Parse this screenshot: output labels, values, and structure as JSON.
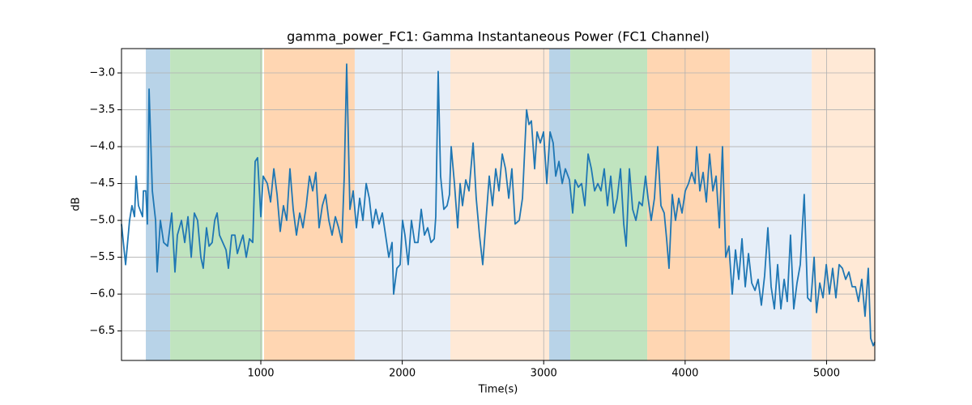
{
  "chart_data": {
    "type": "line",
    "title": "gamma_power_FC1: Gamma Instantaneous Power (FC1 Channel)",
    "xlabel": "Time(s)",
    "ylabel": "dB",
    "xlim": [
      15,
      5341
    ],
    "ylim": [
      -6.9,
      -2.67
    ],
    "xticks": [
      1000,
      2000,
      3000,
      4000,
      5000
    ],
    "yticks": [
      {
        "value": -6.5,
        "label": "−6.5"
      },
      {
        "value": -6.0,
        "label": "−6.0"
      },
      {
        "value": -5.5,
        "label": "−5.5"
      },
      {
        "value": -5.0,
        "label": "−5.0"
      },
      {
        "value": -4.5,
        "label": "−4.5"
      },
      {
        "value": -4.0,
        "label": "−4.0"
      },
      {
        "value": -3.5,
        "label": "−3.5"
      },
      {
        "value": -3.0,
        "label": "−3.0"
      }
    ],
    "grid": true,
    "spans": [
      {
        "start": 187,
        "end": 359,
        "color": "#b8d3e8"
      },
      {
        "start": 359,
        "end": 1011,
        "color": "#c0e4bf"
      },
      {
        "start": 1023,
        "end": 1664,
        "color": "#ffd6b2"
      },
      {
        "start": 1664,
        "end": 2340,
        "color": "#e6eef8"
      },
      {
        "start": 2340,
        "end": 3039,
        "color": "#ffe9d6"
      },
      {
        "start": 3039,
        "end": 3188,
        "color": "#b8d3e8"
      },
      {
        "start": 3188,
        "end": 3732,
        "color": "#c0e4bf"
      },
      {
        "start": 3732,
        "end": 4316,
        "color": "#ffd6b2"
      },
      {
        "start": 4316,
        "end": 4895,
        "color": "#e6eef8"
      },
      {
        "start": 4895,
        "end": 5341,
        "color": "#ffe9d6"
      }
    ],
    "x": [
      15,
      44,
      72,
      89,
      107,
      118,
      135,
      164,
      170,
      187,
      198,
      210,
      233,
      256,
      267,
      290,
      313,
      341,
      370,
      393,
      410,
      439,
      462,
      485,
      508,
      530,
      553,
      576,
      593,
      616,
      634,
      656,
      674,
      691,
      708,
      731,
      754,
      771,
      794,
      817,
      834,
      857,
      874,
      897,
      920,
      943,
      960,
      977,
      1000,
      1017,
      1046,
      1069,
      1092,
      1115,
      1137,
      1160,
      1183,
      1206,
      1229,
      1252,
      1275,
      1298,
      1321,
      1344,
      1367,
      1389,
      1412,
      1435,
      1458,
      1481,
      1504,
      1527,
      1550,
      1573,
      1590,
      1607,
      1630,
      1653,
      1676,
      1699,
      1722,
      1745,
      1767,
      1790,
      1813,
      1836,
      1859,
      1882,
      1905,
      1928,
      1939,
      1962,
      1985,
      2002,
      2019,
      2042,
      2065,
      2088,
      2111,
      2134,
      2157,
      2180,
      2203,
      2226,
      2237,
      2254,
      2271,
      2294,
      2317,
      2334,
      2346,
      2369,
      2392,
      2409,
      2426,
      2449,
      2472,
      2501,
      2523,
      2546,
      2569,
      2592,
      2615,
      2638,
      2661,
      2684,
      2707,
      2730,
      2753,
      2775,
      2798,
      2827,
      2850,
      2879,
      2896,
      2913,
      2936,
      2953,
      2976,
      2999,
      3022,
      3045,
      3067,
      3085,
      3108,
      3131,
      3153,
      3182,
      3205,
      3222,
      3245,
      3268,
      3291,
      3314,
      3337,
      3360,
      3383,
      3405,
      3428,
      3451,
      3474,
      3497,
      3520,
      3543,
      3566,
      3583,
      3606,
      3629,
      3652,
      3675,
      3697,
      3720,
      3738,
      3760,
      3783,
      3806,
      3829,
      3852,
      3869,
      3886,
      3909,
      3932,
      3955,
      3978,
      4001,
      4024,
      4047,
      4070,
      4081,
      4104,
      4127,
      4150,
      4173,
      4196,
      4219,
      4242,
      4264,
      4287,
      4310,
      4333,
      4356,
      4379,
      4402,
      4425,
      4448,
      4471,
      4494,
      4516,
      4539,
      4562,
      4585,
      4608,
      4631,
      4654,
      4677,
      4700,
      4722,
      4745,
      4768,
      4791,
      4814,
      4842,
      4866,
      4889,
      4912,
      4929,
      4952,
      4975,
      4998,
      5020,
      5043,
      5066,
      5089,
      5112,
      5135,
      5158,
      5181,
      5204,
      5226,
      5249,
      5272,
      5295,
      5312,
      5330,
      5341
    ],
    "series": [
      {
        "color": "#1f77b4",
        "values": [
          -5.05,
          -5.6,
          -5.0,
          -4.8,
          -4.95,
          -4.4,
          -4.8,
          -4.95,
          -4.6,
          -4.6,
          -5.05,
          -3.22,
          -4.6,
          -5.0,
          -5.7,
          -5.0,
          -5.3,
          -5.35,
          -4.9,
          -5.7,
          -5.2,
          -5.0,
          -5.3,
          -4.95,
          -5.5,
          -4.9,
          -5.0,
          -5.5,
          -5.65,
          -5.1,
          -5.35,
          -5.3,
          -5.0,
          -4.9,
          -5.2,
          -5.3,
          -5.4,
          -5.65,
          -5.2,
          -5.2,
          -5.45,
          -5.3,
          -5.2,
          -5.5,
          -5.25,
          -5.3,
          -4.2,
          -4.15,
          -4.95,
          -4.4,
          -4.5,
          -4.75,
          -4.3,
          -4.65,
          -5.15,
          -4.8,
          -5.0,
          -4.3,
          -4.85,
          -5.2,
          -4.9,
          -5.1,
          -4.8,
          -4.4,
          -4.6,
          -4.35,
          -5.1,
          -4.8,
          -4.65,
          -5.0,
          -5.2,
          -4.95,
          -5.1,
          -5.3,
          -4.4,
          -2.88,
          -4.85,
          -4.6,
          -5.1,
          -4.7,
          -5.0,
          -4.5,
          -4.7,
          -5.1,
          -4.85,
          -5.05,
          -4.9,
          -5.2,
          -5.5,
          -5.3,
          -6.0,
          -5.65,
          -5.6,
          -5.0,
          -5.2,
          -5.6,
          -5.0,
          -5.3,
          -5.3,
          -4.85,
          -5.2,
          -5.1,
          -5.3,
          -5.25,
          -4.95,
          -2.98,
          -4.4,
          -4.85,
          -4.8,
          -4.65,
          -4.0,
          -4.5,
          -5.1,
          -4.5,
          -4.8,
          -4.45,
          -4.6,
          -3.95,
          -4.7,
          -5.2,
          -5.6,
          -5.0,
          -4.4,
          -4.8,
          -4.3,
          -4.6,
          -4.1,
          -4.3,
          -4.7,
          -4.3,
          -5.05,
          -5.0,
          -4.7,
          -3.5,
          -3.7,
          -3.65,
          -4.3,
          -3.8,
          -3.95,
          -3.8,
          -4.5,
          -3.8,
          -3.95,
          -4.4,
          -4.2,
          -4.5,
          -4.3,
          -4.45,
          -4.9,
          -4.45,
          -4.55,
          -4.5,
          -4.8,
          -4.1,
          -4.3,
          -4.6,
          -4.5,
          -4.6,
          -4.3,
          -4.8,
          -4.4,
          -4.9,
          -4.7,
          -4.3,
          -5.05,
          -5.35,
          -4.3,
          -4.85,
          -5.0,
          -4.75,
          -4.8,
          -4.4,
          -4.7,
          -5.0,
          -4.7,
          -4.0,
          -4.8,
          -4.9,
          -5.25,
          -5.65,
          -4.65,
          -5.0,
          -4.7,
          -4.9,
          -4.6,
          -4.5,
          -4.35,
          -4.5,
          -4.0,
          -4.6,
          -4.35,
          -4.75,
          -4.1,
          -4.6,
          -4.4,
          -5.1,
          -4.0,
          -5.5,
          -5.35,
          -6.0,
          -5.4,
          -5.8,
          -5.25,
          -5.9,
          -5.45,
          -5.85,
          -5.95,
          -5.8,
          -6.15,
          -5.75,
          -5.1,
          -5.9,
          -6.2,
          -5.6,
          -6.2,
          -5.8,
          -6.1,
          -5.2,
          -6.2,
          -5.85,
          -5.6,
          -4.65,
          -6.05,
          -6.1,
          -5.5,
          -6.25,
          -5.85,
          -6.05,
          -5.6,
          -6.0,
          -5.65,
          -6.05,
          -5.6,
          -5.65,
          -5.8,
          -5.7,
          -5.9,
          -5.9,
          -6.1,
          -5.8,
          -6.3,
          -5.65,
          -6.6,
          -6.7,
          -6.65
        ]
      }
    ]
  }
}
